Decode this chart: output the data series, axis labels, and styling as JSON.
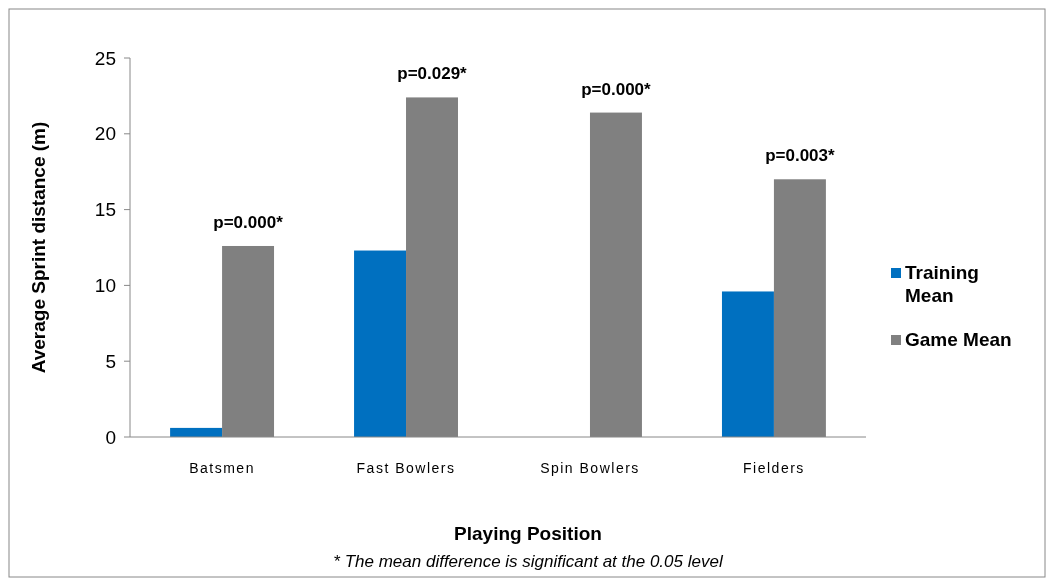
{
  "chart_data": {
    "type": "bar",
    "categories": [
      "Batsmen",
      "Fast Bowlers",
      "Spin Bowlers",
      "Fielders"
    ],
    "series": [
      {
        "name": "Training Mean",
        "color": "#0070c0",
        "values": [
          0.6,
          12.3,
          0,
          9.6
        ]
      },
      {
        "name": "Game Mean",
        "color": "#808080",
        "values": [
          12.6,
          22.4,
          21.4,
          17.0
        ]
      }
    ],
    "ylim": [
      0,
      25
    ],
    "yticks": [
      0,
      5,
      10,
      15,
      20,
      25
    ],
    "ylabel": "Average Sprint distance (m)",
    "xlabel": "Playing Position",
    "grid": false,
    "legend": "right",
    "annotations": [
      {
        "text": "p=0.000*",
        "x": "Batsmen",
        "y": 12.6
      },
      {
        "text": "p=0.029*",
        "x": "Fast Bowlers",
        "y": 22.4
      },
      {
        "text": "p=0.000*",
        "x": "Spin Bowlers",
        "y": 21.4
      },
      {
        "text": "p=0.003*",
        "x": "Fielders",
        "y": 17.0
      },
      "* The mean difference is significant at the 0.05 level"
    ]
  }
}
